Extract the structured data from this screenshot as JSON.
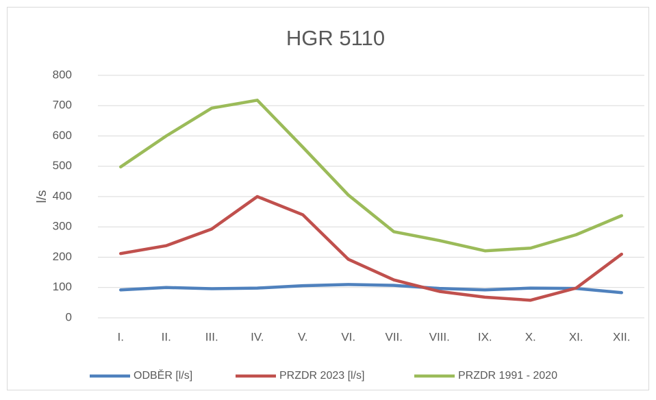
{
  "chart_data": {
    "type": "line",
    "title": "HGR 5110",
    "y_label": "l/s",
    "categories": [
      "I.",
      "II.",
      "III.",
      "IV.",
      "V.",
      "VI.",
      "VII.",
      "VIII.",
      "IX.",
      "X.",
      "XI.",
      "XII."
    ],
    "series": [
      {
        "name": "ODBĚR [l/s]",
        "color": "#4f81bd",
        "values": [
          92,
          100,
          96,
          98,
          106,
          110,
          107,
          97,
          92,
          98,
          97,
          83
        ]
      },
      {
        "name": "PRZDR 2023 [l/s]",
        "color": "#c0504d",
        "values": [
          212,
          238,
          293,
          400,
          340,
          193,
          125,
          87,
          68,
          58,
          98,
          210
        ]
      },
      {
        "name": "PRZDR 1991 - 2020",
        "color": "#9bbb59",
        "values": [
          498,
          600,
          692,
          718,
          563,
          405,
          284,
          255,
          221,
          230,
          274,
          337
        ]
      }
    ],
    "ylim": [
      0,
      800
    ],
    "yticks": [
      0,
      100,
      200,
      300,
      400,
      500,
      600,
      700,
      800
    ],
    "grid": true,
    "legend": "bottom"
  }
}
